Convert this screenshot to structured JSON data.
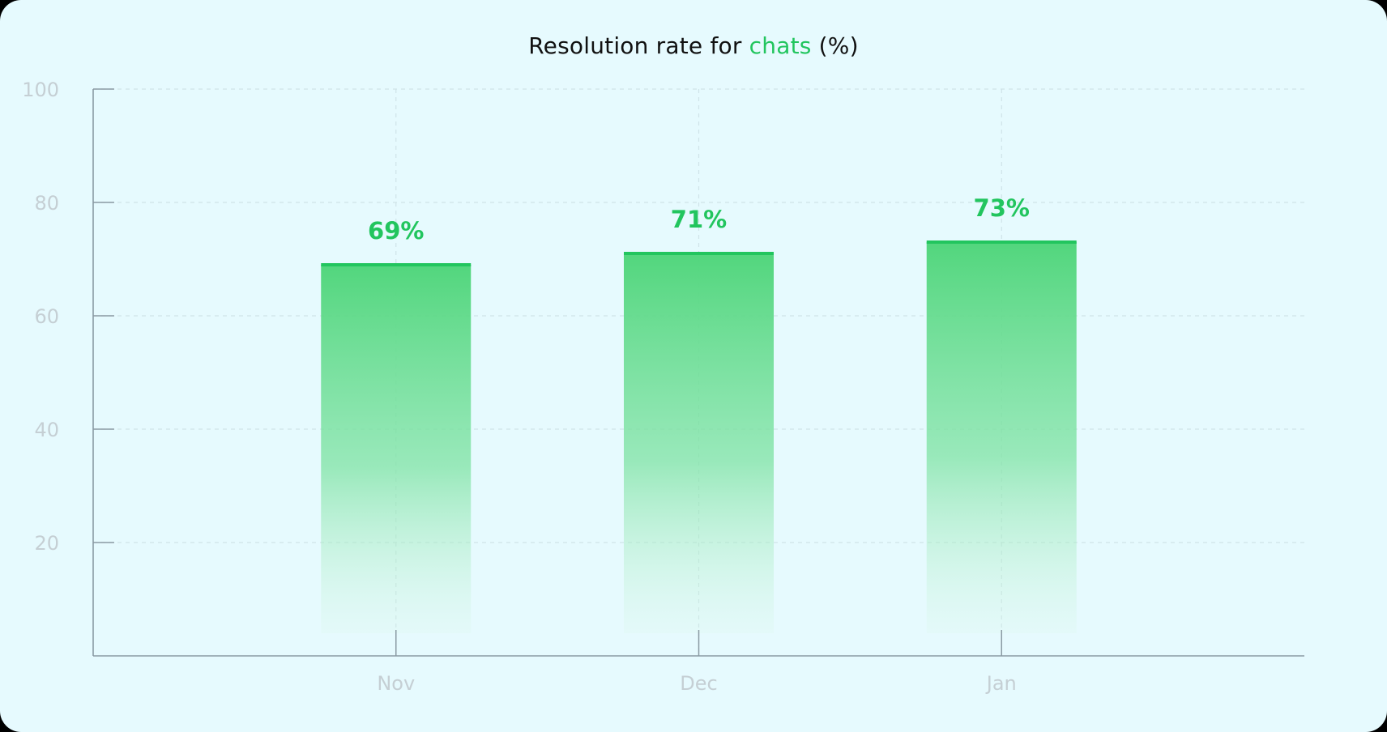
{
  "title": {
    "prefix": "Resolution rate for ",
    "highlight": "chats",
    "suffix": " (%)"
  },
  "colors": {
    "background": "#e6fafe",
    "accent": "#22c55e",
    "bar_top": "#4ed67a",
    "axis": "#8a9aa3",
    "grid": "#cfe3e8",
    "tick_text": "#c5cfd4"
  },
  "chart_data": {
    "type": "bar",
    "categories": [
      "Nov",
      "Dec",
      "Jan"
    ],
    "values": [
      69,
      71,
      73
    ],
    "value_labels": [
      "69%",
      "71%",
      "73%"
    ],
    "yticks": [
      "20",
      "40",
      "60",
      "80",
      "100"
    ],
    "ylim": [
      0,
      100
    ],
    "grid": true,
    "xlabel": "",
    "ylabel": ""
  }
}
